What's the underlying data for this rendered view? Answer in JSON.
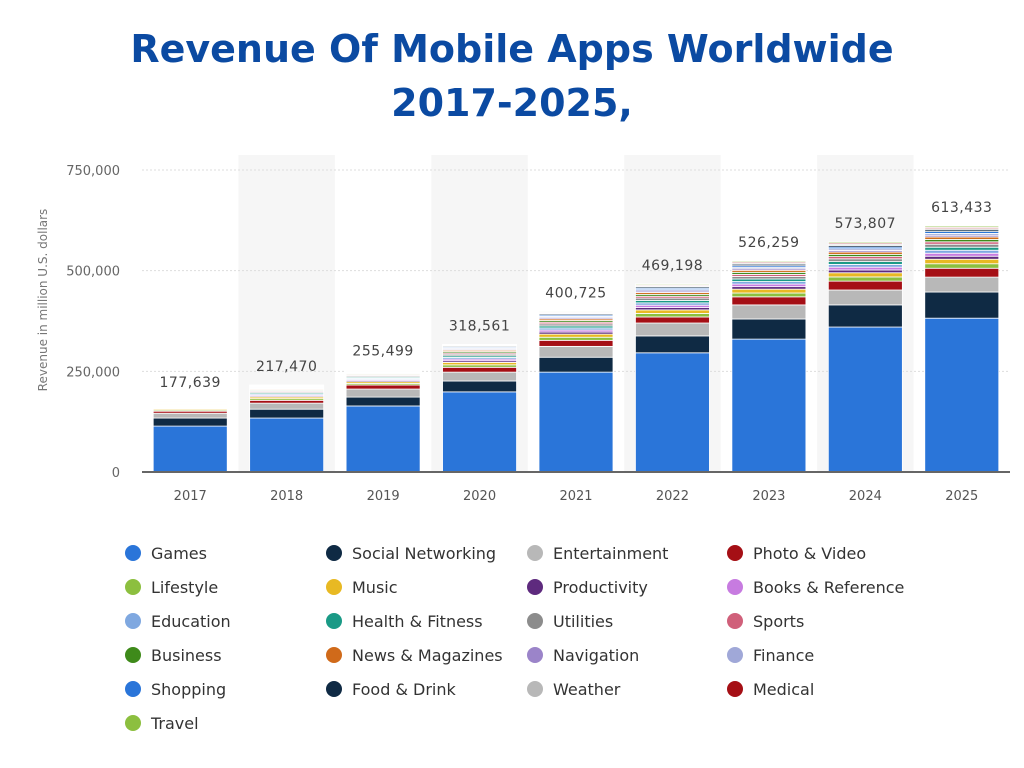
{
  "title_line1": "Revenue Of Mobile Apps Worldwide",
  "title_line2": "2017-2025,",
  "chart_data": {
    "type": "bar",
    "stacked": true,
    "title": "Revenue Of Mobile Apps Worldwide 2017-2025,",
    "xlabel": "",
    "ylabel": "Revenue in million U.S. dollars",
    "ylim": [
      0,
      750000
    ],
    "yticks": [
      "0",
      "250,000",
      "500,000",
      "750,000"
    ],
    "ytick_values": [
      0,
      250000,
      500000,
      750000
    ],
    "grid": true,
    "legend": "bottom",
    "categories": [
      "2017",
      "2018",
      "2019",
      "2020",
      "2021",
      "2022",
      "2023",
      "2024",
      "2025"
    ],
    "totals": [
      177639,
      217470,
      255499,
      318561,
      400725,
      469198,
      526259,
      573807,
      613433
    ],
    "total_labels": [
      "177,639",
      "217,470",
      "255,499",
      "318,561",
      "400,725",
      "469,198",
      "526,259",
      "573,807",
      "613,433"
    ],
    "series": [
      {
        "name": "Games",
        "color": "#2a75d9",
        "values": [
          114000,
          134000,
          164000,
          199000,
          248000,
          296000,
          330000,
          360000,
          382000
        ]
      },
      {
        "name": "Social Networking",
        "color": "#0f2a44",
        "values": [
          20000,
          22000,
          22000,
          27000,
          37000,
          42000,
          50000,
          55000,
          65000
        ]
      },
      {
        "name": "Entertainment",
        "color": "#b8b8b8",
        "values": [
          12000,
          15000,
          20000,
          22000,
          27000,
          32000,
          35000,
          37000,
          37000
        ]
      },
      {
        "name": "Photo & Video",
        "color": "#a50f15",
        "values": [
          5000,
          7000,
          10000,
          12000,
          15000,
          15000,
          20000,
          22000,
          22000
        ]
      },
      {
        "name": "Lifestyle",
        "color": "#8cbf3f",
        "values": [
          2780,
          4110,
          4110,
          6110,
          7680,
          8780,
          9510,
          10400,
          11190
        ]
      },
      {
        "name": "Music",
        "color": "#e8b923",
        "values": [
          2780,
          4110,
          4110,
          6110,
          7680,
          8780,
          9510,
          10400,
          11190
        ]
      },
      {
        "name": "Productivity",
        "color": "#5e2a7e",
        "values": [
          1850,
          2740,
          2740,
          4070,
          5120,
          5850,
          6340,
          6930,
          7460
        ]
      },
      {
        "name": "Books & Reference",
        "color": "#c77be0",
        "values": [
          1850,
          2740,
          2740,
          4070,
          5120,
          5850,
          6340,
          6930,
          7460
        ]
      },
      {
        "name": "Education",
        "color": "#7fa8e0",
        "values": [
          1850,
          2740,
          2740,
          4070,
          5120,
          5850,
          6340,
          6930,
          7460
        ]
      },
      {
        "name": "Health & Fitness",
        "color": "#1a9a86",
        "values": [
          1850,
          2740,
          2740,
          4070,
          5120,
          5850,
          6340,
          6930,
          7460
        ]
      },
      {
        "name": "Utilities",
        "color": "#8c8c8c",
        "values": [
          1850,
          2740,
          2740,
          4070,
          5120,
          5850,
          6340,
          6930,
          7460
        ]
      },
      {
        "name": "Sports",
        "color": "#d0607a",
        "values": [
          1480,
          2190,
          2190,
          3260,
          4100,
          4680,
          5070,
          5540,
          5970
        ]
      },
      {
        "name": "Business",
        "color": "#3e8a1a",
        "values": [
          1480,
          2190,
          2190,
          3260,
          4100,
          4680,
          5070,
          5540,
          5970
        ]
      },
      {
        "name": "News & Magazines",
        "color": "#d06a1a",
        "values": [
          1480,
          2190,
          2190,
          3260,
          4100,
          4680,
          5070,
          5540,
          5970
        ]
      },
      {
        "name": "Navigation",
        "color": "#9b84c9",
        "values": [
          1110,
          1640,
          1640,
          2440,
          3070,
          3510,
          3800,
          4160,
          4480
        ]
      },
      {
        "name": "Finance",
        "color": "#a0a8d8",
        "values": [
          1110,
          1640,
          1640,
          2440,
          3070,
          3510,
          3800,
          4160,
          4480
        ]
      },
      {
        "name": "Shopping",
        "color": "#2a75d9",
        "values": [
          1110,
          1640,
          1640,
          2440,
          3070,
          3510,
          3800,
          4160,
          4480
        ]
      },
      {
        "name": "Food & Drink",
        "color": "#0f2a44",
        "values": [
          1110,
          1640,
          1640,
          2440,
          3070,
          3510,
          3800,
          4160,
          4480
        ]
      },
      {
        "name": "Weather",
        "color": "#b8b8b8",
        "values": [
          740,
          1100,
          1100,
          1630,
          2050,
          2340,
          2540,
          2770,
          2980
        ]
      },
      {
        "name": "Medical",
        "color": "#a50f15",
        "values": [
          740,
          1100,
          1100,
          1630,
          2050,
          2340,
          2540,
          2770,
          2980
        ]
      },
      {
        "name": "Travel",
        "color": "#8cbf3f",
        "values": [
          740,
          1100,
          1100,
          1630,
          2050,
          2340,
          2540,
          2770,
          2980
        ]
      }
    ]
  }
}
